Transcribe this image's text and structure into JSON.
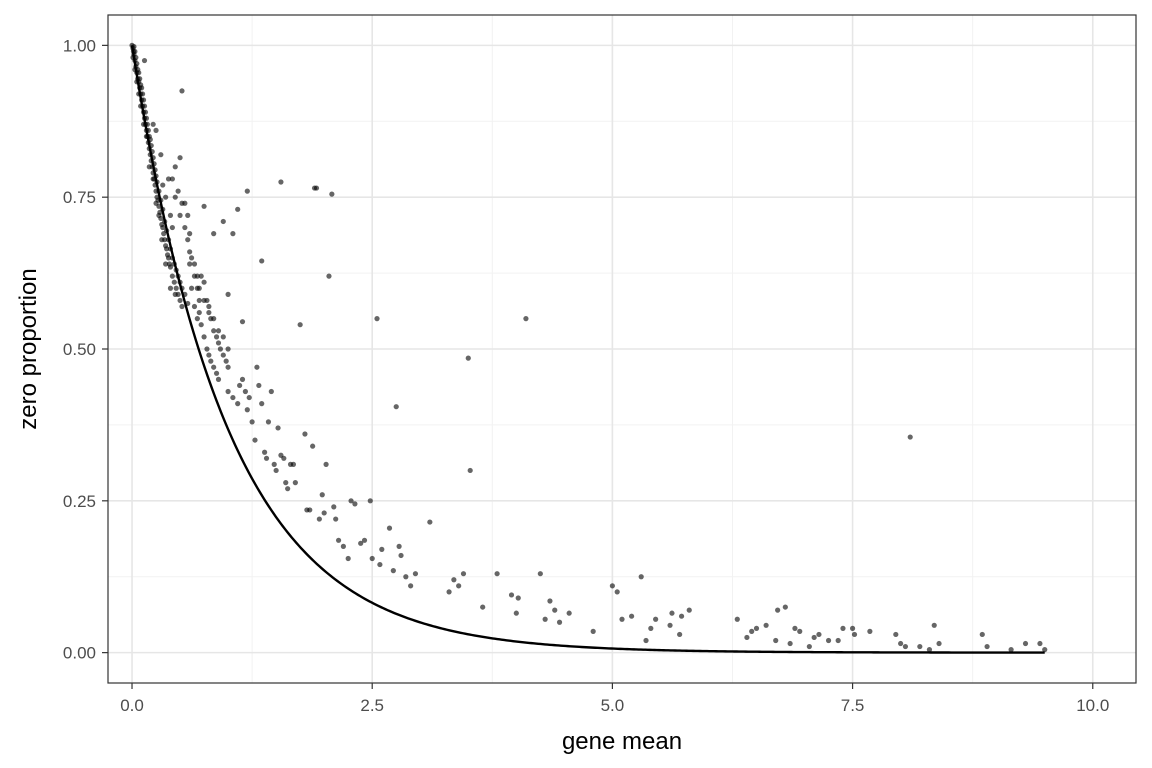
{
  "chart_data": {
    "type": "scatter",
    "xlabel": "gene mean",
    "ylabel": "zero proportion",
    "xlim": [
      -0.25,
      10.45
    ],
    "ylim": [
      -0.05,
      1.05
    ],
    "x_ticks": [
      0.0,
      2.5,
      5.0,
      7.5,
      10.0
    ],
    "x_tick_labels": [
      "0.0",
      "2.5",
      "5.0",
      "7.5",
      "10.0"
    ],
    "y_ticks": [
      0.0,
      0.25,
      0.5,
      0.75,
      1.0
    ],
    "y_tick_labels": [
      "0.00",
      "0.25",
      "0.50",
      "0.75",
      "1.00"
    ],
    "grid": true,
    "point_color": "#000000",
    "line_color": "#000000",
    "curve": {
      "function": "exp(-x)",
      "x_range": [
        0,
        9.5
      ]
    },
    "points": [
      [
        0.0,
        1.0
      ],
      [
        0.01,
        0.995
      ],
      [
        0.015,
        0.99
      ],
      [
        0.02,
        0.985
      ],
      [
        0.02,
        0.998
      ],
      [
        0.03,
        0.975
      ],
      [
        0.03,
        0.99
      ],
      [
        0.04,
        0.965
      ],
      [
        0.04,
        0.98
      ],
      [
        0.05,
        0.955
      ],
      [
        0.05,
        0.97
      ],
      [
        0.06,
        0.945
      ],
      [
        0.06,
        0.96
      ],
      [
        0.07,
        0.94
      ],
      [
        0.07,
        0.955
      ],
      [
        0.08,
        0.93
      ],
      [
        0.08,
        0.945
      ],
      [
        0.09,
        0.92
      ],
      [
        0.09,
        0.935
      ],
      [
        0.1,
        0.91
      ],
      [
        0.1,
        0.93
      ],
      [
        0.11,
        0.9
      ],
      [
        0.11,
        0.92
      ],
      [
        0.12,
        0.89
      ],
      [
        0.12,
        0.91
      ],
      [
        0.13,
        0.88
      ],
      [
        0.13,
        0.9
      ],
      [
        0.14,
        0.87
      ],
      [
        0.14,
        0.89
      ],
      [
        0.15,
        0.86
      ],
      [
        0.15,
        0.88
      ],
      [
        0.16,
        0.85
      ],
      [
        0.16,
        0.87
      ],
      [
        0.17,
        0.84
      ],
      [
        0.17,
        0.86
      ],
      [
        0.18,
        0.83
      ],
      [
        0.18,
        0.85
      ],
      [
        0.19,
        0.82
      ],
      [
        0.19,
        0.845
      ],
      [
        0.2,
        0.81
      ],
      [
        0.2,
        0.835
      ],
      [
        0.21,
        0.8
      ],
      [
        0.21,
        0.825
      ],
      [
        0.22,
        0.79
      ],
      [
        0.22,
        0.815
      ],
      [
        0.23,
        0.78
      ],
      [
        0.23,
        0.805
      ],
      [
        0.24,
        0.77
      ],
      [
        0.24,
        0.795
      ],
      [
        0.25,
        0.76
      ],
      [
        0.25,
        0.785
      ],
      [
        0.26,
        0.75
      ],
      [
        0.26,
        0.775
      ],
      [
        0.27,
        0.745
      ],
      [
        0.28,
        0.735
      ],
      [
        0.28,
        0.76
      ],
      [
        0.29,
        0.725
      ],
      [
        0.3,
        0.715
      ],
      [
        0.3,
        0.745
      ],
      [
        0.31,
        0.705
      ],
      [
        0.32,
        0.7
      ],
      [
        0.32,
        0.73
      ],
      [
        0.33,
        0.69
      ],
      [
        0.34,
        0.68
      ],
      [
        0.34,
        0.71
      ],
      [
        0.35,
        0.67
      ],
      [
        0.36,
        0.665
      ],
      [
        0.36,
        0.695
      ],
      [
        0.37,
        0.655
      ],
      [
        0.38,
        0.65
      ],
      [
        0.38,
        0.68
      ],
      [
        0.39,
        0.64
      ],
      [
        0.4,
        0.635
      ],
      [
        0.4,
        0.665
      ],
      [
        0.42,
        0.62
      ],
      [
        0.42,
        0.65
      ],
      [
        0.44,
        0.61
      ],
      [
        0.44,
        0.64
      ],
      [
        0.46,
        0.6
      ],
      [
        0.46,
        0.63
      ],
      [
        0.48,
        0.59
      ],
      [
        0.48,
        0.62
      ],
      [
        0.5,
        0.58
      ],
      [
        0.5,
        0.61
      ],
      [
        0.52,
        0.6
      ],
      [
        0.55,
        0.59
      ],
      [
        0.58,
        0.575
      ],
      [
        0.6,
        0.64
      ],
      [
        0.62,
        0.6
      ],
      [
        0.65,
        0.57
      ],
      [
        0.68,
        0.55
      ],
      [
        0.7,
        0.56
      ],
      [
        0.72,
        0.54
      ],
      [
        0.75,
        0.52
      ],
      [
        0.78,
        0.5
      ],
      [
        0.8,
        0.49
      ],
      [
        0.82,
        0.48
      ],
      [
        0.85,
        0.47
      ],
      [
        0.88,
        0.46
      ],
      [
        0.9,
        0.45
      ],
      [
        0.01,
        0.98
      ],
      [
        0.03,
        0.96
      ],
      [
        0.05,
        0.94
      ],
      [
        0.07,
        0.92
      ],
      [
        0.09,
        0.9
      ],
      [
        0.12,
        0.87
      ],
      [
        0.15,
        0.85
      ],
      [
        0.18,
        0.8
      ],
      [
        0.22,
        0.78
      ],
      [
        0.25,
        0.74
      ],
      [
        0.28,
        0.72
      ],
      [
        0.31,
        0.68
      ],
      [
        0.35,
        0.64
      ],
      [
        0.4,
        0.6
      ],
      [
        0.45,
        0.59
      ],
      [
        0.52,
        0.57
      ],
      [
        0.13,
        0.975
      ],
      [
        0.22,
        0.87
      ],
      [
        0.25,
        0.86
      ],
      [
        0.3,
        0.82
      ],
      [
        0.32,
        0.77
      ],
      [
        0.35,
        0.75
      ],
      [
        0.38,
        0.78
      ],
      [
        0.4,
        0.72
      ],
      [
        0.42,
        0.7
      ],
      [
        0.45,
        0.8
      ],
      [
        0.48,
        0.76
      ],
      [
        0.5,
        0.815
      ],
      [
        0.52,
        0.74
      ],
      [
        0.55,
        0.74
      ],
      [
        0.58,
        0.72
      ],
      [
        0.6,
        0.69
      ],
      [
        0.62,
        0.65
      ],
      [
        0.65,
        0.62
      ],
      [
        0.68,
        0.6
      ],
      [
        0.7,
        0.58
      ],
      [
        0.72,
        0.62
      ],
      [
        0.75,
        0.61
      ],
      [
        0.78,
        0.58
      ],
      [
        0.8,
        0.56
      ],
      [
        0.82,
        0.55
      ],
      [
        0.85,
        0.53
      ],
      [
        0.88,
        0.52
      ],
      [
        0.9,
        0.51
      ],
      [
        0.92,
        0.5
      ],
      [
        0.95,
        0.49
      ],
      [
        0.98,
        0.48
      ],
      [
        1.0,
        0.47
      ],
      [
        0.42,
        0.78
      ],
      [
        0.45,
        0.75
      ],
      [
        0.5,
        0.72
      ],
      [
        0.55,
        0.7
      ],
      [
        0.58,
        0.68
      ],
      [
        0.6,
        0.66
      ],
      [
        0.65,
        0.64
      ],
      [
        0.68,
        0.62
      ],
      [
        0.7,
        0.6
      ],
      [
        0.75,
        0.58
      ],
      [
        0.8,
        0.57
      ],
      [
        0.85,
        0.55
      ],
      [
        0.9,
        0.53
      ],
      [
        0.95,
        0.52
      ],
      [
        1.0,
        0.5
      ],
      [
        0.52,
        0.925
      ],
      [
        0.75,
        0.735
      ],
      [
        0.85,
        0.69
      ],
      [
        0.95,
        0.71
      ],
      [
        1.0,
        0.59
      ],
      [
        1.05,
        0.69
      ],
      [
        1.1,
        0.73
      ],
      [
        1.15,
        0.545
      ],
      [
        1.2,
        0.76
      ],
      [
        1.0,
        0.43
      ],
      [
        1.05,
        0.42
      ],
      [
        1.1,
        0.41
      ],
      [
        1.12,
        0.44
      ],
      [
        1.15,
        0.45
      ],
      [
        1.18,
        0.43
      ],
      [
        1.2,
        0.4
      ],
      [
        1.22,
        0.42
      ],
      [
        1.25,
        0.38
      ],
      [
        1.28,
        0.35
      ],
      [
        1.3,
        0.47
      ],
      [
        1.32,
        0.44
      ],
      [
        1.35,
        0.41
      ],
      [
        1.38,
        0.33
      ],
      [
        1.4,
        0.32
      ],
      [
        1.42,
        0.38
      ],
      [
        1.45,
        0.43
      ],
      [
        1.48,
        0.31
      ],
      [
        1.5,
        0.3
      ],
      [
        1.52,
        0.37
      ],
      [
        1.55,
        0.325
      ],
      [
        1.58,
        0.32
      ],
      [
        1.6,
        0.28
      ],
      [
        1.62,
        0.27
      ],
      [
        1.65,
        0.31
      ],
      [
        1.68,
        0.31
      ],
      [
        1.7,
        0.28
      ],
      [
        1.35,
        0.645
      ],
      [
        1.55,
        0.775
      ],
      [
        1.75,
        0.54
      ],
      [
        1.8,
        0.36
      ],
      [
        1.82,
        0.235
      ],
      [
        1.85,
        0.235
      ],
      [
        1.88,
        0.34
      ],
      [
        1.9,
        0.765
      ],
      [
        1.92,
        0.765
      ],
      [
        1.95,
        0.22
      ],
      [
        1.98,
        0.26
      ],
      [
        2.0,
        0.23
      ],
      [
        2.02,
        0.31
      ],
      [
        2.05,
        0.62
      ],
      [
        2.08,
        0.755
      ],
      [
        2.1,
        0.24
      ],
      [
        2.12,
        0.22
      ],
      [
        2.15,
        0.185
      ],
      [
        2.2,
        0.175
      ],
      [
        2.25,
        0.155
      ],
      [
        2.28,
        0.25
      ],
      [
        2.32,
        0.245
      ],
      [
        2.38,
        0.18
      ],
      [
        2.42,
        0.185
      ],
      [
        2.48,
        0.25
      ],
      [
        2.5,
        0.155
      ],
      [
        2.55,
        0.55
      ],
      [
        2.58,
        0.145
      ],
      [
        2.6,
        0.17
      ],
      [
        2.68,
        0.205
      ],
      [
        2.72,
        0.135
      ],
      [
        2.75,
        0.405
      ],
      [
        2.78,
        0.175
      ],
      [
        2.8,
        0.16
      ],
      [
        2.85,
        0.125
      ],
      [
        2.9,
        0.11
      ],
      [
        2.95,
        0.13
      ],
      [
        3.1,
        0.215
      ],
      [
        3.3,
        0.1
      ],
      [
        3.35,
        0.12
      ],
      [
        3.4,
        0.11
      ],
      [
        3.45,
        0.13
      ],
      [
        3.5,
        0.485
      ],
      [
        3.52,
        0.3
      ],
      [
        3.65,
        0.075
      ],
      [
        3.8,
        0.13
      ],
      [
        3.95,
        0.095
      ],
      [
        4.0,
        0.065
      ],
      [
        4.02,
        0.09
      ],
      [
        4.1,
        0.55
      ],
      [
        4.25,
        0.13
      ],
      [
        4.3,
        0.055
      ],
      [
        4.35,
        0.085
      ],
      [
        4.4,
        0.07
      ],
      [
        4.45,
        0.05
      ],
      [
        4.55,
        0.065
      ],
      [
        4.8,
        0.035
      ],
      [
        5.0,
        0.11
      ],
      [
        5.05,
        0.1
      ],
      [
        5.1,
        0.055
      ],
      [
        5.2,
        0.06
      ],
      [
        5.3,
        0.125
      ],
      [
        5.35,
        0.02
      ],
      [
        5.4,
        0.04
      ],
      [
        5.45,
        0.055
      ],
      [
        5.6,
        0.045
      ],
      [
        5.62,
        0.065
      ],
      [
        5.7,
        0.03
      ],
      [
        5.72,
        0.06
      ],
      [
        5.8,
        0.07
      ],
      [
        6.3,
        0.055
      ],
      [
        6.4,
        0.025
      ],
      [
        6.45,
        0.035
      ],
      [
        6.5,
        0.04
      ],
      [
        6.6,
        0.045
      ],
      [
        6.7,
        0.02
      ],
      [
        6.72,
        0.07
      ],
      [
        6.8,
        0.075
      ],
      [
        6.85,
        0.015
      ],
      [
        6.9,
        0.04
      ],
      [
        6.95,
        0.035
      ],
      [
        7.05,
        0.01
      ],
      [
        7.1,
        0.025
      ],
      [
        7.15,
        0.03
      ],
      [
        7.25,
        0.02
      ],
      [
        7.35,
        0.02
      ],
      [
        7.4,
        0.04
      ],
      [
        7.5,
        0.04
      ],
      [
        7.52,
        0.03
      ],
      [
        7.68,
        0.035
      ],
      [
        7.95,
        0.03
      ],
      [
        8.0,
        0.015
      ],
      [
        8.05,
        0.01
      ],
      [
        8.1,
        0.355
      ],
      [
        8.2,
        0.01
      ],
      [
        8.3,
        0.005
      ],
      [
        8.35,
        0.045
      ],
      [
        8.4,
        0.015
      ],
      [
        8.85,
        0.03
      ],
      [
        8.9,
        0.01
      ],
      [
        9.15,
        0.005
      ],
      [
        9.3,
        0.015
      ],
      [
        9.45,
        0.015
      ],
      [
        9.5,
        0.005
      ]
    ]
  }
}
